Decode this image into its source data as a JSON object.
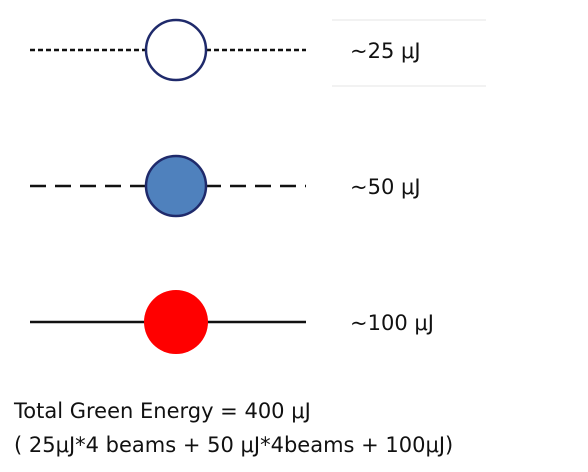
{
  "legend": {
    "items": [
      {
        "label": "~25 μJ",
        "style": "dotted",
        "marker": "hollow"
      },
      {
        "label": "~50 μJ",
        "style": "dashed",
        "marker": "blue"
      },
      {
        "label": "~100 μJ",
        "style": "solid",
        "marker": "red"
      }
    ]
  },
  "note": {
    "lines": [
      "Total Green Energy = 400 μJ",
      "( 25μJ*4 beams + 50 μJ*4beams + 100μJ)"
    ]
  }
}
